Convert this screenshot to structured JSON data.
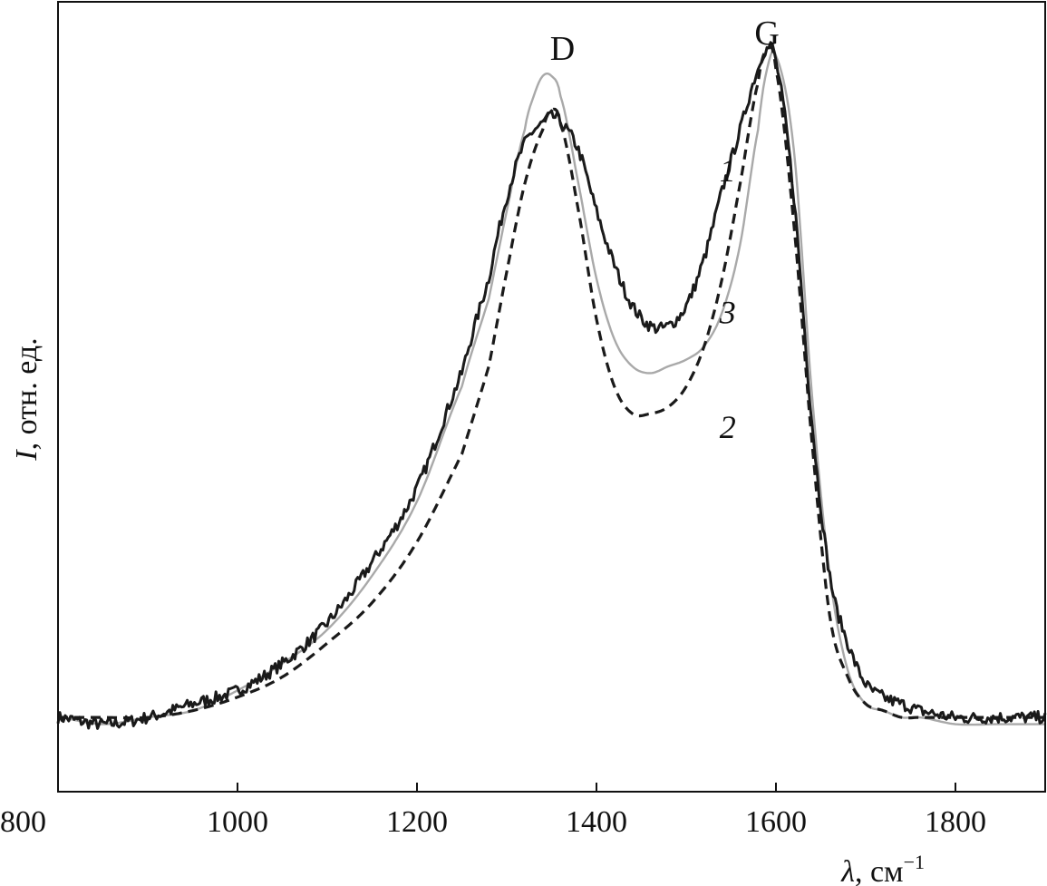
{
  "chart_data": {
    "type": "line",
    "xlabel": {
      "symbol": "λ",
      "rest": ", см",
      "sup": "−1"
    },
    "ylabel": {
      "symbol": "I",
      "rest": ", отн. ед."
    },
    "xlim": [
      800,
      1900
    ],
    "ylim": [
      -0.1,
      1.07
    ],
    "xticks": [
      800,
      1000,
      1200,
      1400,
      1600,
      1800
    ],
    "yticks_shown": false,
    "grid": false,
    "peak_annotations": [
      {
        "label": "D",
        "x": 1350
      },
      {
        "label": "G",
        "x": 1590
      }
    ],
    "series": [
      {
        "name": "1",
        "style": "solid-black-noisy",
        "color": "#1a1a1a",
        "x": [
          800,
          850,
          900,
          950,
          1000,
          1050,
          1100,
          1150,
          1200,
          1250,
          1280,
          1300,
          1320,
          1340,
          1350,
          1360,
          1380,
          1400,
          1420,
          1440,
          1460,
          1480,
          1500,
          1520,
          1540,
          1560,
          1580,
          1590,
          1600,
          1620,
          1640,
          1660,
          1680,
          1700,
          1720,
          1740,
          1760,
          1800,
          1850,
          1900
        ],
        "y": [
          0.01,
          0.0,
          0.01,
          0.03,
          0.05,
          0.09,
          0.15,
          0.24,
          0.35,
          0.52,
          0.66,
          0.78,
          0.86,
          0.89,
          0.9,
          0.89,
          0.85,
          0.76,
          0.68,
          0.62,
          0.59,
          0.59,
          0.62,
          0.69,
          0.79,
          0.88,
          0.97,
          1.0,
          0.98,
          0.78,
          0.45,
          0.22,
          0.12,
          0.06,
          0.04,
          0.03,
          0.02,
          0.01,
          0.01,
          0.01
        ]
      },
      {
        "name": "2",
        "style": "dashed-black",
        "color": "#1a1a1a",
        "x": [
          800,
          850,
          900,
          950,
          1000,
          1050,
          1100,
          1150,
          1200,
          1250,
          1280,
          1300,
          1320,
          1340,
          1350,
          1360,
          1380,
          1400,
          1420,
          1440,
          1460,
          1480,
          1500,
          1520,
          1540,
          1560,
          1580,
          1590,
          1600,
          1620,
          1640,
          1660,
          1680,
          1700,
          1720,
          1740,
          1760,
          1800,
          1850,
          1900
        ],
        "y": [
          0.01,
          0.01,
          0.01,
          0.02,
          0.04,
          0.07,
          0.12,
          0.18,
          0.27,
          0.4,
          0.53,
          0.67,
          0.8,
          0.88,
          0.91,
          0.89,
          0.76,
          0.6,
          0.5,
          0.46,
          0.46,
          0.47,
          0.5,
          0.56,
          0.66,
          0.8,
          0.95,
          1.0,
          0.97,
          0.74,
          0.42,
          0.16,
          0.07,
          0.03,
          0.02,
          0.01,
          0.01,
          0.01,
          0.01,
          0.01
        ]
      },
      {
        "name": "3",
        "style": "solid-gray",
        "color": "#a9a9a9",
        "x": [
          800,
          850,
          900,
          950,
          1000,
          1050,
          1100,
          1150,
          1200,
          1250,
          1280,
          1300,
          1320,
          1330,
          1340,
          1350,
          1360,
          1380,
          1400,
          1420,
          1440,
          1460,
          1480,
          1500,
          1520,
          1540,
          1560,
          1580,
          1590,
          1600,
          1620,
          1640,
          1660,
          1680,
          1700,
          1720,
          1740,
          1760,
          1800,
          1850,
          1900
        ],
        "y": [
          0.01,
          0.0,
          0.01,
          0.02,
          0.05,
          0.09,
          0.14,
          0.22,
          0.33,
          0.5,
          0.63,
          0.76,
          0.88,
          0.93,
          0.96,
          0.96,
          0.93,
          0.8,
          0.66,
          0.57,
          0.53,
          0.52,
          0.53,
          0.54,
          0.56,
          0.61,
          0.71,
          0.88,
          0.97,
          0.99,
          0.85,
          0.49,
          0.22,
          0.08,
          0.03,
          0.02,
          0.01,
          0.01,
          0.0,
          0.0,
          0.0
        ]
      }
    ],
    "curve_labels": [
      {
        "text": "1",
        "x": 1530,
        "y": 0.82
      },
      {
        "text": "3",
        "x": 1530,
        "y": 0.61
      },
      {
        "text": "2",
        "x": 1530,
        "y": 0.44
      }
    ]
  }
}
